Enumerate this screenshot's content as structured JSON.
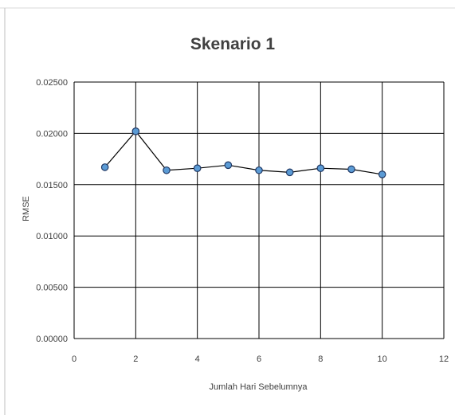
{
  "chart_data": {
    "type": "scatter",
    "title": "Skenario 1",
    "xlabel": "Jumlah Hari Sebelumnya",
    "ylabel": "RMSE",
    "xlim": [
      0,
      12
    ],
    "ylim": [
      0,
      0.025
    ],
    "xticks": [
      0,
      2,
      4,
      6,
      8,
      10,
      12
    ],
    "yticks": [
      0.0,
      0.005,
      0.01,
      0.015,
      0.02,
      0.025
    ],
    "ytick_labels": [
      "0.00000",
      "0.00500",
      "0.01000",
      "0.01500",
      "0.02000",
      "0.02500"
    ],
    "grid": true,
    "legend": "none",
    "marker_color": "#5b9bd5",
    "line_color": "#000000",
    "series": [
      {
        "x": [
          1,
          2,
          3,
          4,
          5,
          6,
          7,
          8,
          9,
          10
        ],
        "values": [
          0.0167,
          0.0202,
          0.0164,
          0.0166,
          0.0169,
          0.0164,
          0.0162,
          0.0166,
          0.0165,
          0.016
        ]
      }
    ]
  }
}
